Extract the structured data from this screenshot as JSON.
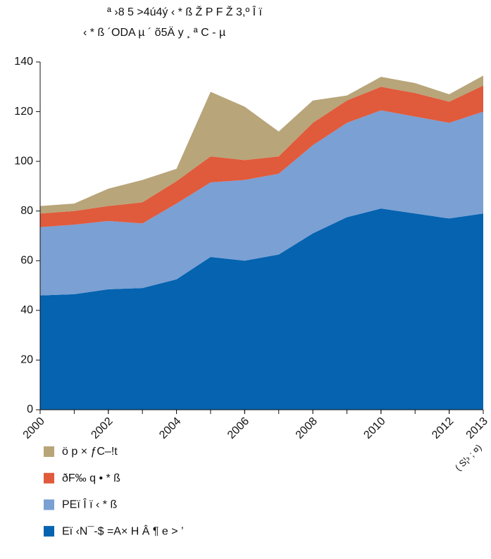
{
  "chart_data": {
    "type": "stacked_area",
    "title": "ª ›8 5  >4ú4ý  ‹ * ß   Ž P F Ž 3,º Î ï",
    "subtitle": "‹ * ß ´ODA µ ´    õ5Ä y ¸         ª C   - µ",
    "x": [
      2000,
      2001,
      2002,
      2003,
      2004,
      2005,
      2006,
      2007,
      2008,
      2009,
      2010,
      2011,
      2012,
      2013
    ],
    "x_note": "( S¦› ; ¤)",
    "series": [
      {
        "name": "Eï  ‹N¯-$ =A× H Â ¶ e > ’",
        "color": "#0563b0",
        "values": [
          46,
          46.5,
          48.5,
          49,
          52.5,
          61.5,
          60,
          62.5,
          71,
          77.5,
          81,
          79,
          77,
          79
        ]
      },
      {
        "name": "PEï Î ï   ‹ * ß",
        "color": "#7aa0d4",
        "values": [
          27.5,
          28,
          27.5,
          26,
          30.5,
          30,
          32.5,
          32.5,
          35.5,
          38,
          39.5,
          39,
          38.5,
          41
        ]
      },
      {
        "name": "ðF‰ q • * ß",
        "color": "#e05a3c",
        "values": [
          5.5,
          5.5,
          6,
          8.5,
          9,
          10.5,
          8,
          7,
          9,
          9,
          9.5,
          9.5,
          8.5,
          10.5
        ]
      },
      {
        "name": "ö p ×   ƒC–!t",
        "color": "#b8a57a",
        "values": [
          3,
          3,
          7,
          9,
          5,
          26,
          21.5,
          10,
          9,
          2,
          4,
          4,
          3,
          4
        ]
      }
    ],
    "xlim": [
      2000,
      2013
    ],
    "xticks": [
      2000,
      2002,
      2004,
      2006,
      2008,
      2010,
      2012,
      2013
    ],
    "ylim": [
      0,
      140
    ],
    "yticks": [
      0,
      20,
      40,
      60,
      80,
      100,
      120,
      140
    ]
  }
}
